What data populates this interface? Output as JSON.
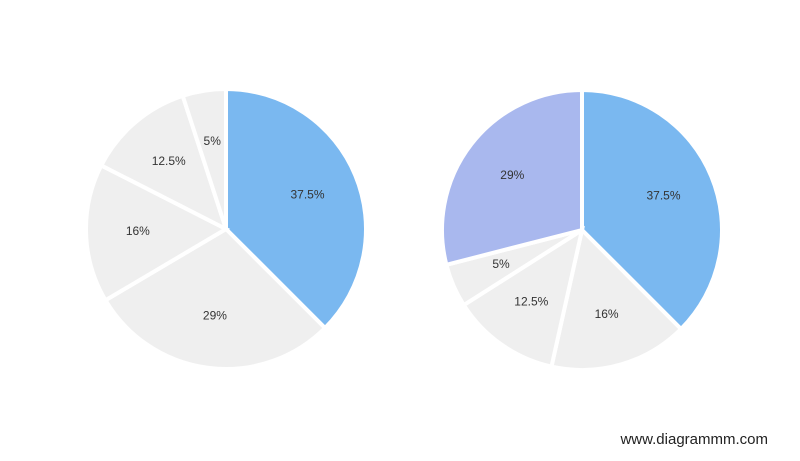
{
  "chart_data": [
    {
      "type": "pie",
      "values": [
        37.5,
        29,
        16,
        12.5,
        5
      ],
      "value_labels": [
        "37.5%",
        "29%",
        "16%",
        "12.5%",
        "5%"
      ],
      "colors": [
        "#7ab8f0",
        "#efefef",
        "#efefef",
        "#efefef",
        "#efefef"
      ]
    },
    {
      "type": "pie",
      "values": [
        37.5,
        16,
        12.5,
        5,
        29
      ],
      "value_labels": [
        "37.5%",
        "16%",
        "12.5%",
        "5%",
        "29%"
      ],
      "colors": [
        "#7ab8f0",
        "#efefef",
        "#efefef",
        "#efefef",
        "#a9b8ee"
      ]
    }
  ],
  "watermark": "www.diagrammm.com"
}
